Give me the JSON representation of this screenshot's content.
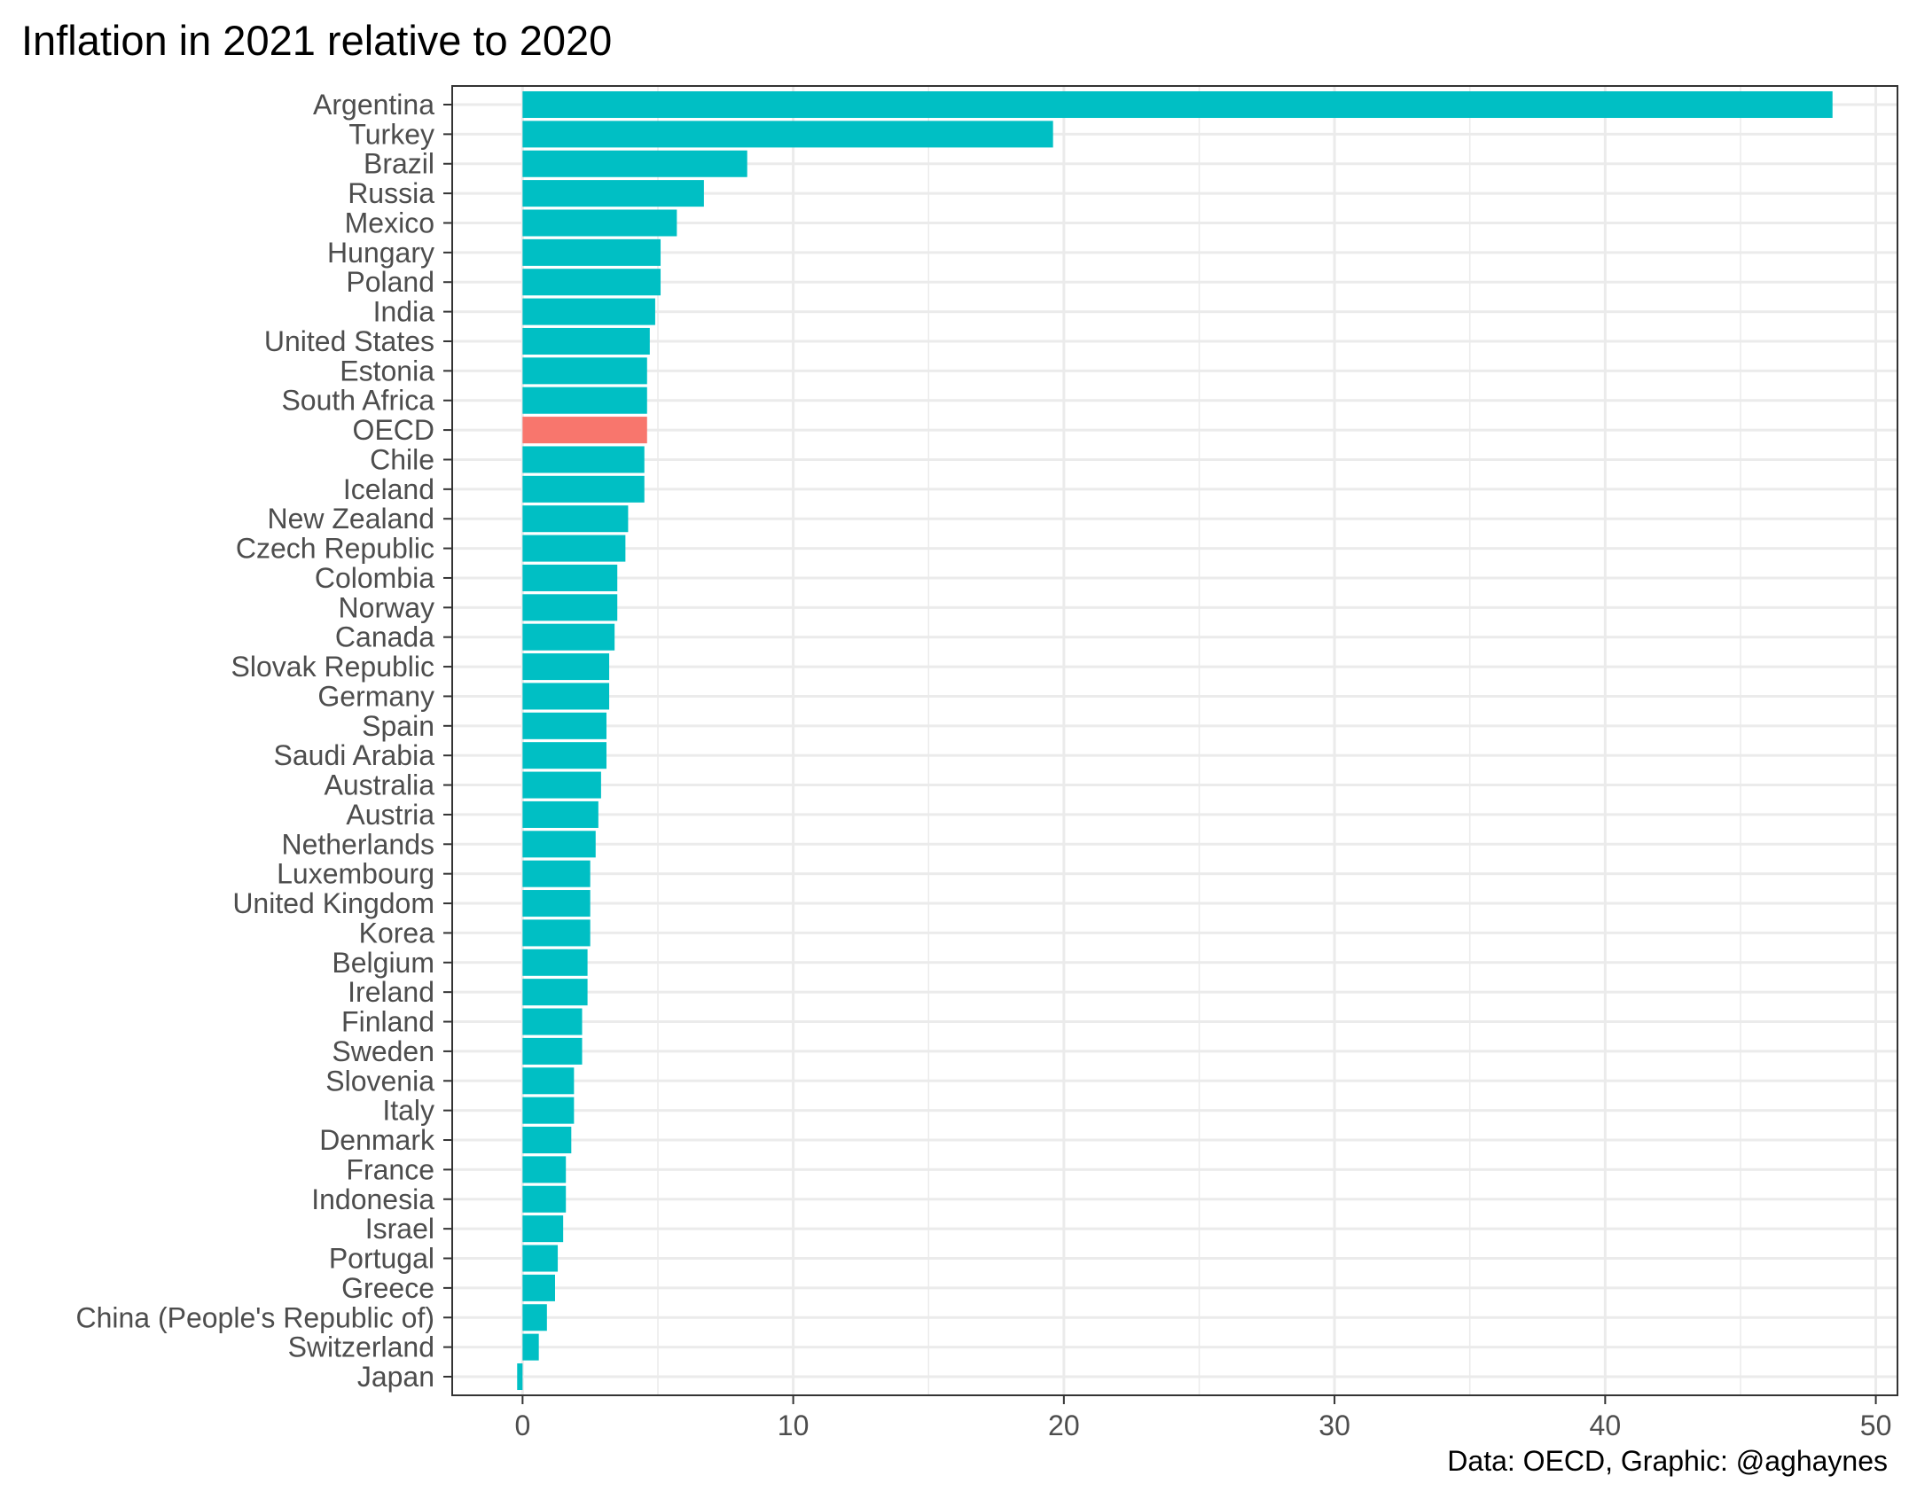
{
  "title": "Inflation in 2021 relative to 2020",
  "caption": "Data: OECD, Graphic: @aghaynes",
  "chart_data": {
    "type": "bar",
    "orientation": "horizontal",
    "title": "Inflation in 2021 relative to 2020",
    "xlabel": "",
    "ylabel": "",
    "xlim": [
      -2.6,
      50.8
    ],
    "x_ticks": [
      "0",
      "10",
      "20",
      "30",
      "40",
      "50"
    ],
    "x_tick_values": [
      0,
      10,
      20,
      30,
      40,
      50
    ],
    "grid": true,
    "legend": "none",
    "colors": {
      "default": "#00BFC4",
      "highlight": "#F8766D",
      "grid": "#ebebeb",
      "border": "#333333"
    },
    "highlight_category": "OECD",
    "categories": [
      "Argentina",
      "Turkey",
      "Brazil",
      "Russia",
      "Mexico",
      "Hungary",
      "Poland",
      "India",
      "United States",
      "Estonia",
      "South Africa",
      "OECD",
      "Chile",
      "Iceland",
      "New Zealand",
      "Czech Republic",
      "Colombia",
      "Norway",
      "Canada",
      "Slovak Republic",
      "Germany",
      "Spain",
      "Saudi Arabia",
      "Australia",
      "Austria",
      "Netherlands",
      "Luxembourg",
      "United Kingdom",
      "Korea",
      "Belgium",
      "Ireland",
      "Finland",
      "Sweden",
      "Slovenia",
      "Italy",
      "Denmark",
      "France",
      "Indonesia",
      "Israel",
      "Portugal",
      "Greece",
      "China (People's Republic of)",
      "Switzerland",
      "Japan"
    ],
    "values": [
      48.4,
      19.6,
      8.3,
      6.7,
      5.7,
      5.1,
      5.1,
      4.9,
      4.7,
      4.6,
      4.6,
      4.6,
      4.5,
      4.5,
      3.9,
      3.8,
      3.5,
      3.5,
      3.4,
      3.2,
      3.2,
      3.1,
      3.1,
      2.9,
      2.8,
      2.7,
      2.5,
      2.5,
      2.5,
      2.4,
      2.4,
      2.2,
      2.2,
      1.9,
      1.9,
      1.8,
      1.6,
      1.6,
      1.5,
      1.3,
      1.2,
      0.9,
      0.6,
      -0.2
    ]
  }
}
